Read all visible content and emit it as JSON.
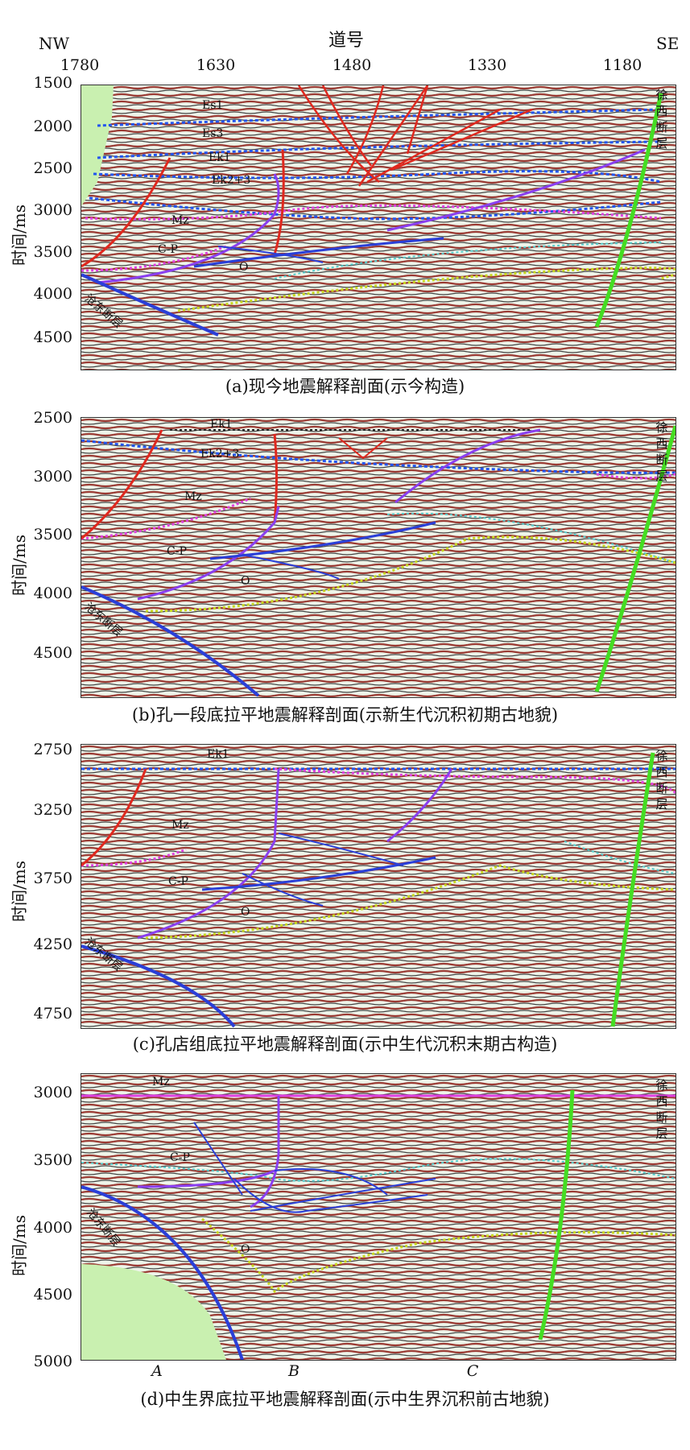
{
  "header": {
    "left": "NW",
    "right": "SE",
    "title": "道号"
  },
  "x_ticks": [
    "1780",
    "1630",
    "1480",
    "1330",
    "1180"
  ],
  "y_axis_title": "时间/ms",
  "panels": [
    {
      "id": "a",
      "caption": "(a)现今地震解释剖面(示今构造)",
      "y_ticks": [
        "1500",
        "2000",
        "2500",
        "3000",
        "3500",
        "4000",
        "4500"
      ],
      "labels": {
        "es1": "Es1",
        "es3": "Es3",
        "ek1": "Ek1",
        "ek23": "Ek2+3",
        "mz": "Mz",
        "cp": "C-P",
        "o": "O"
      },
      "fault_right": "徐西断层",
      "fault_left": "沧东断层"
    },
    {
      "id": "b",
      "caption": "(b)孔一段底拉平地震解释剖面(示新生代沉积初期古地貌)",
      "y_ticks": [
        "2500",
        "3000",
        "3500",
        "4000",
        "4500"
      ],
      "labels": {
        "ek1": "Ek1",
        "ek23": "Ek2+3",
        "mz": "Mz",
        "cp": "C-P",
        "o": "O"
      },
      "fault_right": "徐西断层",
      "fault_left": "沧东断层"
    },
    {
      "id": "c",
      "caption": "(c)孔店组底拉平地震解释剖面(示中生代沉积末期古构造)",
      "y_ticks": [
        "2750",
        "3250",
        "3750",
        "4250",
        "4750"
      ],
      "labels": {
        "ek1": "Ek1",
        "mz": "Mz",
        "cp": "C-P",
        "o": "O"
      },
      "fault_right": "徐西断层",
      "fault_left": "沧东断层"
    },
    {
      "id": "d",
      "caption": "(d)中生界底拉平地震解释剖面(示中生界沉积前古地貌)",
      "y_ticks": [
        "3000",
        "3500",
        "4000",
        "4500",
        "5000"
      ],
      "labels": {
        "mz": "Mz",
        "cp": "C-P",
        "o": "O"
      },
      "fault_right": "徐西断层",
      "fault_left": "沧东断层",
      "markers": [
        "A",
        "B",
        "C"
      ]
    }
  ],
  "colors": {
    "normal_fault": "#e0281e",
    "thrust": "#2a3fd8",
    "strike_slip": "#8a3ff0",
    "xuxi_fault": "#44dd22",
    "horizon_blue": "#2255ee",
    "horizon_pink": "#e040e0",
    "horizon_cyan": "#55cccc",
    "horizon_yellow": "#c8d820",
    "background": "#e8f3e8"
  }
}
